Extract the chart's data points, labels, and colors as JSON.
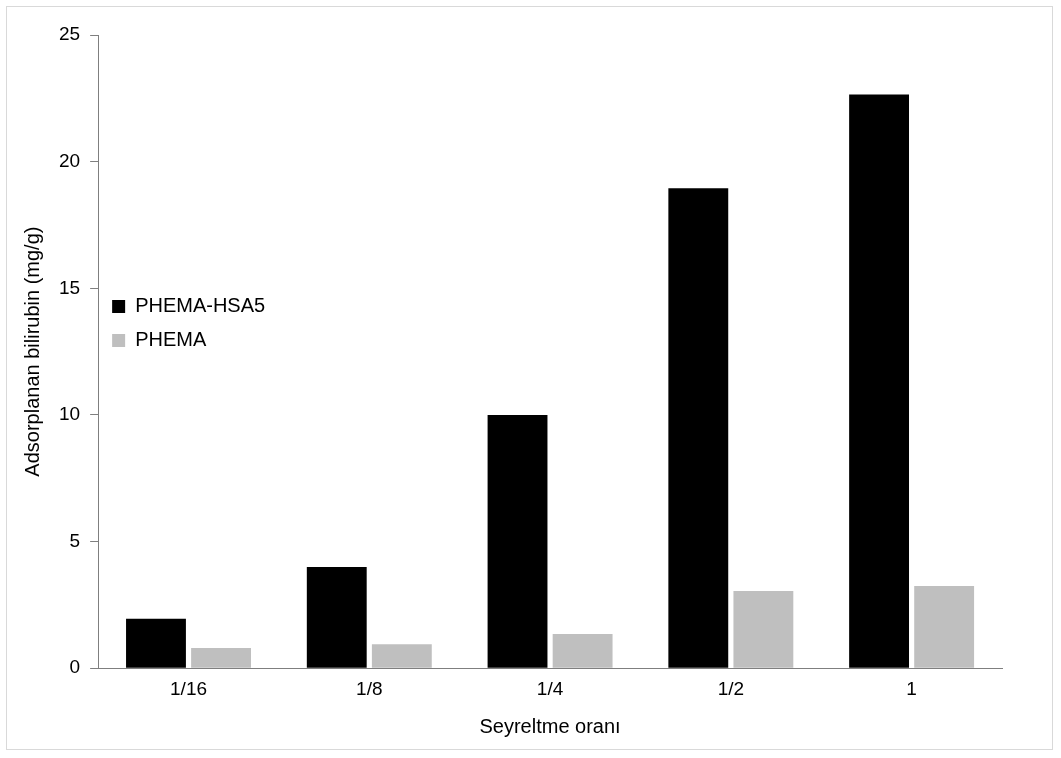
{
  "chart_data": {
    "type": "bar",
    "xlabel": "Seyreltme oranı",
    "ylabel": "Adsorplanan bilirubin (mg/g)",
    "categories": [
      "1/16",
      "1/8",
      "1/4",
      "1/2",
      "1"
    ],
    "series": [
      {
        "name": "PHEMA-HSA5",
        "color": "#000000",
        "values": [
          1.95,
          4.0,
          10.0,
          18.95,
          22.65
        ]
      },
      {
        "name": "PHEMA",
        "color": "#bfbfbf",
        "values": [
          0.8,
          0.95,
          1.35,
          3.05,
          3.25
        ]
      }
    ],
    "ylim": [
      0,
      25
    ],
    "yticks": [
      0,
      5,
      10,
      15,
      20,
      25
    ],
    "grid": false,
    "legend": "top"
  }
}
